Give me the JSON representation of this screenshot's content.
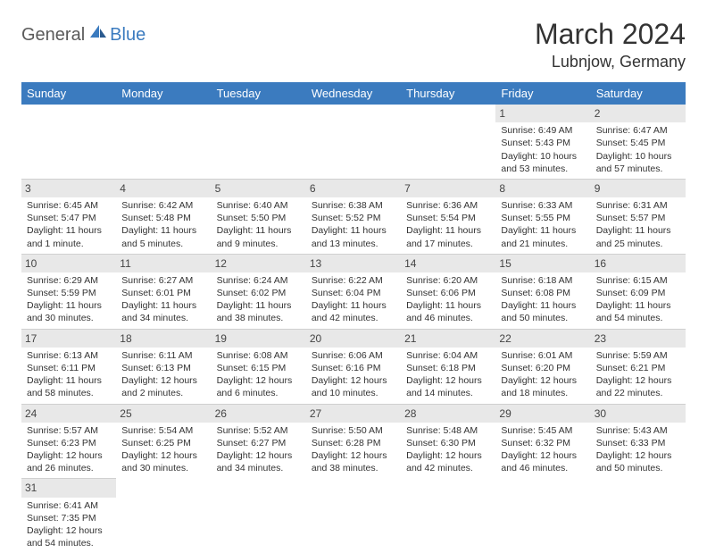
{
  "logo": {
    "part1": "General",
    "part2": "Blue"
  },
  "title": "March 2024",
  "location": "Lubnjow, Germany",
  "colors": {
    "header_bg": "#3b7bbf",
    "header_fg": "#ffffff",
    "daynum_bg": "#e8e8e8",
    "border": "#d0d0d0",
    "text": "#333333"
  },
  "day_headers": [
    "Sunday",
    "Monday",
    "Tuesday",
    "Wednesday",
    "Thursday",
    "Friday",
    "Saturday"
  ],
  "weeks": [
    [
      null,
      null,
      null,
      null,
      null,
      {
        "n": "1",
        "sr": "Sunrise: 6:49 AM",
        "ss": "Sunset: 5:43 PM",
        "dl": "Daylight: 10 hours and 53 minutes."
      },
      {
        "n": "2",
        "sr": "Sunrise: 6:47 AM",
        "ss": "Sunset: 5:45 PM",
        "dl": "Daylight: 10 hours and 57 minutes."
      }
    ],
    [
      {
        "n": "3",
        "sr": "Sunrise: 6:45 AM",
        "ss": "Sunset: 5:47 PM",
        "dl": "Daylight: 11 hours and 1 minute."
      },
      {
        "n": "4",
        "sr": "Sunrise: 6:42 AM",
        "ss": "Sunset: 5:48 PM",
        "dl": "Daylight: 11 hours and 5 minutes."
      },
      {
        "n": "5",
        "sr": "Sunrise: 6:40 AM",
        "ss": "Sunset: 5:50 PM",
        "dl": "Daylight: 11 hours and 9 minutes."
      },
      {
        "n": "6",
        "sr": "Sunrise: 6:38 AM",
        "ss": "Sunset: 5:52 PM",
        "dl": "Daylight: 11 hours and 13 minutes."
      },
      {
        "n": "7",
        "sr": "Sunrise: 6:36 AM",
        "ss": "Sunset: 5:54 PM",
        "dl": "Daylight: 11 hours and 17 minutes."
      },
      {
        "n": "8",
        "sr": "Sunrise: 6:33 AM",
        "ss": "Sunset: 5:55 PM",
        "dl": "Daylight: 11 hours and 21 minutes."
      },
      {
        "n": "9",
        "sr": "Sunrise: 6:31 AM",
        "ss": "Sunset: 5:57 PM",
        "dl": "Daylight: 11 hours and 25 minutes."
      }
    ],
    [
      {
        "n": "10",
        "sr": "Sunrise: 6:29 AM",
        "ss": "Sunset: 5:59 PM",
        "dl": "Daylight: 11 hours and 30 minutes."
      },
      {
        "n": "11",
        "sr": "Sunrise: 6:27 AM",
        "ss": "Sunset: 6:01 PM",
        "dl": "Daylight: 11 hours and 34 minutes."
      },
      {
        "n": "12",
        "sr": "Sunrise: 6:24 AM",
        "ss": "Sunset: 6:02 PM",
        "dl": "Daylight: 11 hours and 38 minutes."
      },
      {
        "n": "13",
        "sr": "Sunrise: 6:22 AM",
        "ss": "Sunset: 6:04 PM",
        "dl": "Daylight: 11 hours and 42 minutes."
      },
      {
        "n": "14",
        "sr": "Sunrise: 6:20 AM",
        "ss": "Sunset: 6:06 PM",
        "dl": "Daylight: 11 hours and 46 minutes."
      },
      {
        "n": "15",
        "sr": "Sunrise: 6:18 AM",
        "ss": "Sunset: 6:08 PM",
        "dl": "Daylight: 11 hours and 50 minutes."
      },
      {
        "n": "16",
        "sr": "Sunrise: 6:15 AM",
        "ss": "Sunset: 6:09 PM",
        "dl": "Daylight: 11 hours and 54 minutes."
      }
    ],
    [
      {
        "n": "17",
        "sr": "Sunrise: 6:13 AM",
        "ss": "Sunset: 6:11 PM",
        "dl": "Daylight: 11 hours and 58 minutes."
      },
      {
        "n": "18",
        "sr": "Sunrise: 6:11 AM",
        "ss": "Sunset: 6:13 PM",
        "dl": "Daylight: 12 hours and 2 minutes."
      },
      {
        "n": "19",
        "sr": "Sunrise: 6:08 AM",
        "ss": "Sunset: 6:15 PM",
        "dl": "Daylight: 12 hours and 6 minutes."
      },
      {
        "n": "20",
        "sr": "Sunrise: 6:06 AM",
        "ss": "Sunset: 6:16 PM",
        "dl": "Daylight: 12 hours and 10 minutes."
      },
      {
        "n": "21",
        "sr": "Sunrise: 6:04 AM",
        "ss": "Sunset: 6:18 PM",
        "dl": "Daylight: 12 hours and 14 minutes."
      },
      {
        "n": "22",
        "sr": "Sunrise: 6:01 AM",
        "ss": "Sunset: 6:20 PM",
        "dl": "Daylight: 12 hours and 18 minutes."
      },
      {
        "n": "23",
        "sr": "Sunrise: 5:59 AM",
        "ss": "Sunset: 6:21 PM",
        "dl": "Daylight: 12 hours and 22 minutes."
      }
    ],
    [
      {
        "n": "24",
        "sr": "Sunrise: 5:57 AM",
        "ss": "Sunset: 6:23 PM",
        "dl": "Daylight: 12 hours and 26 minutes."
      },
      {
        "n": "25",
        "sr": "Sunrise: 5:54 AM",
        "ss": "Sunset: 6:25 PM",
        "dl": "Daylight: 12 hours and 30 minutes."
      },
      {
        "n": "26",
        "sr": "Sunrise: 5:52 AM",
        "ss": "Sunset: 6:27 PM",
        "dl": "Daylight: 12 hours and 34 minutes."
      },
      {
        "n": "27",
        "sr": "Sunrise: 5:50 AM",
        "ss": "Sunset: 6:28 PM",
        "dl": "Daylight: 12 hours and 38 minutes."
      },
      {
        "n": "28",
        "sr": "Sunrise: 5:48 AM",
        "ss": "Sunset: 6:30 PM",
        "dl": "Daylight: 12 hours and 42 minutes."
      },
      {
        "n": "29",
        "sr": "Sunrise: 5:45 AM",
        "ss": "Sunset: 6:32 PM",
        "dl": "Daylight: 12 hours and 46 minutes."
      },
      {
        "n": "30",
        "sr": "Sunrise: 5:43 AM",
        "ss": "Sunset: 6:33 PM",
        "dl": "Daylight: 12 hours and 50 minutes."
      }
    ],
    [
      {
        "n": "31",
        "sr": "Sunrise: 6:41 AM",
        "ss": "Sunset: 7:35 PM",
        "dl": "Daylight: 12 hours and 54 minutes."
      },
      null,
      null,
      null,
      null,
      null,
      null
    ]
  ]
}
